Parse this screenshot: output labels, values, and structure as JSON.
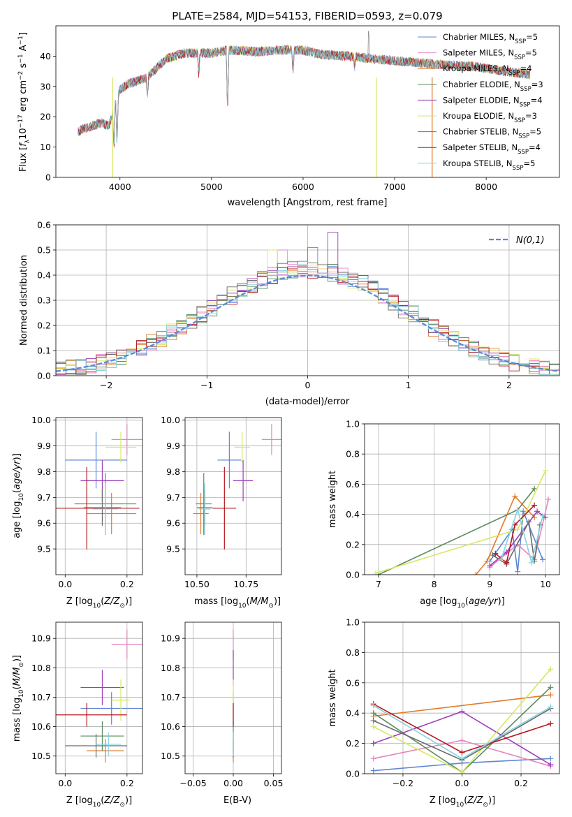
{
  "colors": [
    "#5d86d6",
    "#e585bd",
    "#e17b2a",
    "#5c8a5e",
    "#9a3fb8",
    "#d6e860",
    "#6b6b6b",
    "#b5171e",
    "#86d4e0"
  ],
  "chart_data": [
    {
      "id": "spectrum",
      "type": "line",
      "title": "PLATE=2584, MJD=54153, FIBERID=0593, z=0.079",
      "xlabel": "wavelength [Angstrom, rest frame]",
      "ylabel": "Flux [f_λ 10^-17 erg cm^-2 s^-1 A^-1]",
      "xlim": [
        3300,
        8800
      ],
      "ylim": [
        0,
        50
      ],
      "xticks": [
        4000,
        5000,
        6000,
        7000,
        8000
      ],
      "yticks": [
        0,
        10,
        20,
        30,
        40
      ],
      "legend_position": "top-right",
      "legend": [
        "Chabrier MILES, N_SSP=5",
        "Salpeter MILES, N_SSP=5",
        "Kroupa MILES, N_SSP=4",
        "Chabrier ELODIE, N_SSP=3",
        "Salpeter ELODIE, N_SSP=4",
        "Kroupa ELODIE, N_SSP=3",
        "Chabrier STELIB, N_SSP=5",
        "Salpeter STELIB, N_SSP=4",
        "Kroupa STELIB, N_SSP=5"
      ],
      "continuum": {
        "wavelength": [
          3540,
          3600,
          3700,
          3800,
          3880,
          3950,
          4000,
          4100,
          4200,
          4300,
          4400,
          4500,
          4700,
          5000,
          5200,
          5500,
          5800,
          6000,
          6200,
          6500,
          6800,
          7000,
          7200,
          7400,
          7600,
          7900,
          8200,
          8480
        ],
        "flux": [
          15,
          16,
          17,
          18,
          17,
          24,
          29,
          31,
          32,
          33,
          36,
          39,
          41,
          41,
          42,
          41.5,
          42,
          42,
          40.5,
          40,
          39,
          38.5,
          38,
          37.5,
          37,
          36.5,
          35,
          34
        ]
      },
      "dips": [
        {
          "wavelength": 3934,
          "flux": 8
        },
        {
          "wavelength": 3968,
          "flux": 9
        },
        {
          "wavelength": 4300,
          "flux": 26
        },
        {
          "wavelength": 4861,
          "flux": 33
        },
        {
          "wavelength": 5175,
          "flux": 18
        },
        {
          "wavelength": 5890,
          "flux": 34
        },
        {
          "wavelength": 6563,
          "flux": 36
        }
      ],
      "features": {
        "peak_6717": 48.5,
        "spike_3920": 0,
        "spike_6800": 0,
        "spike_7410": 0
      }
    },
    {
      "id": "residuals",
      "type": "histogram",
      "xlabel": "(data-model)/error",
      "ylabel": "Normed distribution",
      "xlim": [
        -2.5,
        2.5
      ],
      "ylim": [
        0,
        0.6
      ],
      "xticks": [
        -2,
        -1,
        0,
        1,
        2
      ],
      "yticks": [
        0.0,
        0.1,
        0.2,
        0.3,
        0.4,
        0.5,
        0.6
      ],
      "bin_width": 0.1,
      "legend": "N(0,1)",
      "legend_position": "top-right",
      "highlights": [
        {
          "series": 4,
          "bin_center": 0.25,
          "value": 0.57
        },
        {
          "series": 0,
          "bin_center": 0.05,
          "value": 0.51
        },
        {
          "series": 1,
          "bin_center": -0.25,
          "value": 0.5
        },
        {
          "series": 5,
          "bin_center": -0.35,
          "value": 0.5
        }
      ]
    },
    {
      "id": "age-vs-Z",
      "type": "errorbar",
      "xlabel": "Z [log10(Z/Z☉)]",
      "ylabel": "age  [log10(age/yr)]",
      "xlim": [
        -0.03,
        0.25
      ],
      "ylim": [
        9.4,
        10.01
      ],
      "xticks": [
        0.0,
        0.2
      ],
      "yticks": [
        9.5,
        9.6,
        9.7,
        9.8,
        9.9,
        10.0
      ],
      "points": [
        {
          "x": 0.1,
          "xerr": 0.1,
          "y": 9.845,
          "yerr": 0.11
        },
        {
          "x": 0.2,
          "xerr": 0.05,
          "y": 9.925,
          "yerr": 0.06
        },
        {
          "x": 0.15,
          "xerr": 0.08,
          "y": 9.637,
          "yerr": 0.08
        },
        {
          "x": 0.13,
          "xerr": 0.1,
          "y": 9.675,
          "yerr": 0.12
        },
        {
          "x": 0.12,
          "xerr": 0.07,
          "y": 9.765,
          "yerr": 0.08
        },
        {
          "x": 0.18,
          "xerr": 0.05,
          "y": 9.895,
          "yerr": 0.06
        },
        {
          "x": 0.12,
          "xerr": 0.06,
          "y": 9.66,
          "yerr": 0.07
        },
        {
          "x": 0.07,
          "xerr": 0.17,
          "y": 9.658,
          "yerr": 0.16
        },
        {
          "x": 0.13,
          "xerr": 0.04,
          "y": 9.655,
          "yerr": 0.1
        }
      ]
    },
    {
      "id": "age-vs-mass",
      "type": "errorbar",
      "xlabel": "mass [log10(M/M☉)]",
      "ylabel": "",
      "xlim": [
        10.44,
        10.93
      ],
      "ylim": [
        9.4,
        10.01
      ],
      "xticks": [
        10.5,
        10.75
      ],
      "yticks": [
        9.5,
        9.6,
        9.7,
        9.8,
        9.9,
        10.0
      ],
      "points": [
        {
          "x": 10.665,
          "xerr": 0.06,
          "y": 9.845,
          "yerr": 0.11
        },
        {
          "x": 10.88,
          "xerr": 0.05,
          "y": 9.925,
          "yerr": 0.06
        },
        {
          "x": 10.52,
          "xerr": 0.04,
          "y": 9.637,
          "yerr": 0.08
        },
        {
          "x": 10.535,
          "xerr": 0.04,
          "y": 9.675,
          "yerr": 0.12
        },
        {
          "x": 10.735,
          "xerr": 0.05,
          "y": 9.765,
          "yerr": 0.08
        },
        {
          "x": 10.73,
          "xerr": 0.04,
          "y": 9.895,
          "yerr": 0.06
        },
        {
          "x": 10.54,
          "xerr": 0.04,
          "y": 9.66,
          "yerr": 0.07
        },
        {
          "x": 10.64,
          "xerr": 0.06,
          "y": 9.658,
          "yerr": 0.16
        },
        {
          "x": 10.54,
          "xerr": 0.03,
          "y": 9.655,
          "yerr": 0.1
        }
      ]
    },
    {
      "id": "weight-vs-age",
      "type": "line",
      "xlabel": "age  [log10(age/yr)]",
      "ylabel": "mass weight",
      "xlim": [
        6.75,
        10.25
      ],
      "ylim": [
        0,
        1
      ],
      "xticks": [
        7,
        8,
        9,
        10
      ],
      "yticks": [
        0.0,
        0.2,
        0.4,
        0.6,
        0.8,
        1.0
      ],
      "series": [
        {
          "x": [
            9.0,
            9.4,
            9.5,
            9.6,
            9.95
          ],
          "y": [
            0.09,
            0.3,
            0.02,
            0.42,
            0.1
          ]
        },
        {
          "x": [
            9.0,
            9.5,
            9.8,
            10.05
          ],
          "y": [
            0.05,
            0.2,
            0.1,
            0.5
          ]
        },
        {
          "x": [
            8.75,
            8.95,
            9.45,
            9.8
          ],
          "y": [
            0.0,
            0.09,
            0.52,
            0.38
          ]
        },
        {
          "x": [
            7.0,
            9.5,
            9.8
          ],
          "y": [
            0.0,
            0.43,
            0.57
          ]
        },
        {
          "x": [
            9.0,
            9.3,
            9.85,
            10.0
          ],
          "y": [
            0.06,
            0.15,
            0.42,
            0.38
          ]
        },
        {
          "x": [
            6.95,
            9.5,
            10.0
          ],
          "y": [
            0.01,
            0.3,
            0.69
          ]
        },
        {
          "x": [
            9.05,
            9.3,
            9.7,
            9.8,
            9.9
          ],
          "y": [
            0.13,
            0.07,
            0.35,
            0.09,
            0.33
          ]
        },
        {
          "x": [
            9.1,
            9.3,
            9.45,
            9.8
          ],
          "y": [
            0.14,
            0.08,
            0.33,
            0.46
          ]
        },
        {
          "x": [
            9.2,
            9.5,
            9.75,
            9.95
          ],
          "y": [
            0.1,
            0.43,
            0.08,
            0.39
          ]
        }
      ]
    },
    {
      "id": "mass-vs-Z",
      "type": "errorbar",
      "xlabel": "Z [log10(Z/Z☉)]",
      "ylabel": "mass [log10(M/M☉)]",
      "xlim": [
        -0.03,
        0.25
      ],
      "ylim": [
        10.44,
        10.955
      ],
      "xticks": [
        0.0,
        0.2
      ],
      "yticks": [
        10.5,
        10.6,
        10.7,
        10.8,
        10.9
      ],
      "points": [
        {
          "x": 0.15,
          "xerr": 0.1,
          "y": 10.662,
          "yerr": 0.055
        },
        {
          "x": 0.2,
          "xerr": 0.05,
          "y": 10.88,
          "yerr": 0.05
        },
        {
          "x": 0.13,
          "xerr": 0.06,
          "y": 10.518,
          "yerr": 0.04
        },
        {
          "x": 0.12,
          "xerr": 0.07,
          "y": 10.568,
          "yerr": 0.05
        },
        {
          "x": 0.12,
          "xerr": 0.07,
          "y": 10.733,
          "yerr": 0.06
        },
        {
          "x": 0.18,
          "xerr": 0.03,
          "y": 10.69,
          "yerr": 0.07
        },
        {
          "x": 0.1,
          "xerr": 0.1,
          "y": 10.535,
          "yerr": 0.04
        },
        {
          "x": 0.07,
          "xerr": 0.13,
          "y": 10.64,
          "yerr": 0.04
        },
        {
          "x": 0.14,
          "xerr": 0.04,
          "y": 10.54,
          "yerr": 0.04
        }
      ]
    },
    {
      "id": "mass-vs-ebv",
      "type": "errorbar",
      "xlabel": "E(B-V)",
      "ylabel": "",
      "xlim": [
        -0.06,
        0.06
      ],
      "ylim": [
        10.44,
        10.955
      ],
      "xticks": [
        -0.05,
        0.0,
        0.05
      ],
      "yticks": [
        10.5,
        10.6,
        10.7,
        10.8,
        10.9
      ],
      "points": [
        {
          "x": 0,
          "xerr": 0,
          "y": 10.662,
          "yerr": 0.055
        },
        {
          "x": 0,
          "xerr": 0,
          "y": 10.88,
          "yerr": 0.05
        },
        {
          "x": 0,
          "xerr": 0,
          "y": 10.518,
          "yerr": 0.04
        },
        {
          "x": 0,
          "xerr": 0,
          "y": 10.568,
          "yerr": 0.05
        },
        {
          "x": 0,
          "xerr": 0,
          "y": 10.8,
          "yerr": 0.06
        },
        {
          "x": 0,
          "xerr": 0,
          "y": 10.69,
          "yerr": 0.07
        },
        {
          "x": 0,
          "xerr": 0,
          "y": 10.535,
          "yerr": 0.04
        },
        {
          "x": 0,
          "xerr": 0,
          "y": 10.64,
          "yerr": 0.04
        },
        {
          "x": 0,
          "xerr": 0,
          "y": 10.54,
          "yerr": 0.04
        }
      ]
    },
    {
      "id": "weight-vs-Z",
      "type": "line",
      "xlabel": "Z [log10(Z/Z☉)]",
      "ylabel": "mass weight",
      "xlim": [
        -0.33,
        0.33
      ],
      "ylim": [
        0,
        1
      ],
      "xticks": [
        -0.2,
        0.0,
        0.2
      ],
      "yticks": [
        0.0,
        0.2,
        0.4,
        0.6,
        0.8,
        1.0
      ],
      "series": [
        {
          "x": [
            -0.3,
            0.0,
            0.3
          ],
          "y": [
            0.02,
            0.07,
            0.1
          ]
        },
        {
          "x": [
            -0.3,
            0.0,
            0.3
          ],
          "y": [
            0.1,
            0.22,
            0.05
          ]
        },
        {
          "x": [
            -0.3,
            0.3
          ],
          "y": [
            0.38,
            0.52
          ]
        },
        {
          "x": [
            -0.3,
            0.0,
            0.3
          ],
          "y": [
            0.4,
            0.01,
            0.57
          ]
        },
        {
          "x": [
            -0.3,
            0.0,
            0.3
          ],
          "y": [
            0.2,
            0.41,
            0.06
          ]
        },
        {
          "x": [
            -0.3,
            0.0,
            0.3
          ],
          "y": [
            0.31,
            0.01,
            0.69
          ]
        },
        {
          "x": [
            -0.3,
            0.0,
            0.3
          ],
          "y": [
            0.35,
            0.09,
            0.43
          ]
        },
        {
          "x": [
            -0.3,
            0.0,
            0.3
          ],
          "y": [
            0.46,
            0.14,
            0.33
          ]
        },
        {
          "x": [
            -0.3,
            0.0,
            0.3
          ],
          "y": [
            0.45,
            0.1,
            0.44
          ]
        }
      ]
    }
  ]
}
